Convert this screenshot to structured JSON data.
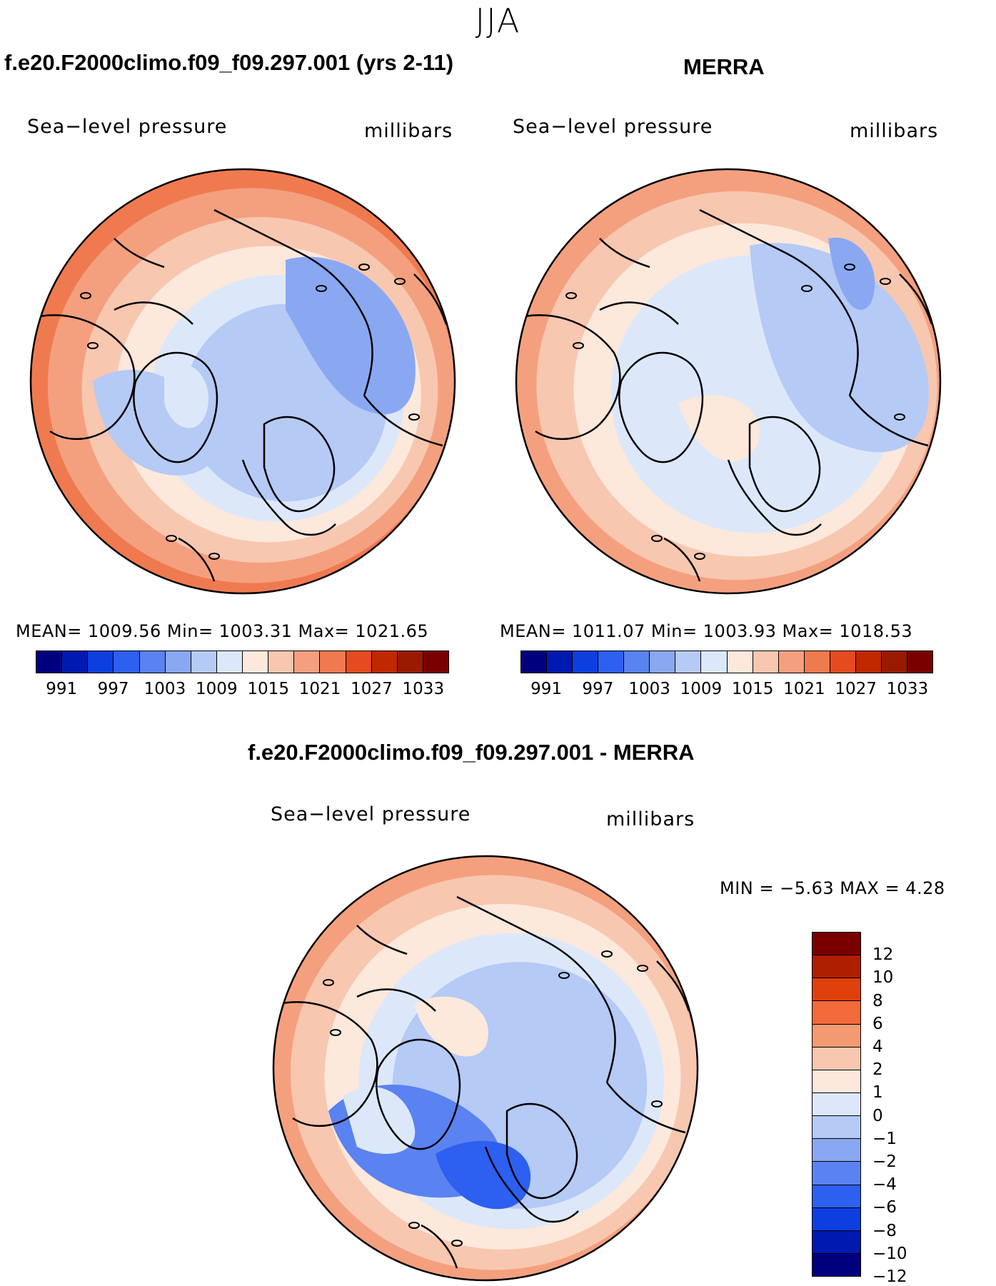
{
  "season": "JJA",
  "panels": {
    "model": {
      "header": "f.e20.F2000climo.f09_f09.297.001 (yrs 2-11)",
      "variable": "Sea−level pressure",
      "units": "millibars",
      "stats": "MEAN=  1009.56   Min=  1003.31   Max=  1021.65"
    },
    "obs": {
      "header": "MERRA",
      "variable": "Sea−level pressure",
      "units": "millibars",
      "stats": "MEAN=  1011.07   Min=  1003.93   Max=  1018.53"
    },
    "diff": {
      "header": "f.e20.F2000climo.f09_f09.297.001 - MERRA",
      "variable": "Sea−level pressure",
      "units": "millibars",
      "stats": "MIN =    −5.63  MAX =      4.28"
    }
  },
  "colorbar_abs": {
    "colors": [
      "#00007f",
      "#0019b0",
      "#0d3ee0",
      "#2d5ff0",
      "#5a82f0",
      "#8aa8f2",
      "#b5caf5",
      "#dce8fa",
      "#fde8dc",
      "#f8c7b0",
      "#f4a07f",
      "#f07a50",
      "#e54a20",
      "#c02800",
      "#991a00",
      "#7a0000"
    ],
    "ticks": [
      "991",
      "997",
      "1003",
      "1009",
      "1015",
      "1021",
      "1027",
      "1033"
    ]
  },
  "colorbar_diff": {
    "colors": [
      "#7a0000",
      "#b01e00",
      "#e0400c",
      "#f26a3a",
      "#f49a72",
      "#f8c7b0",
      "#fde8dc",
      "#dce8fa",
      "#b5caf5",
      "#8aa8f2",
      "#5a82f0",
      "#2d5ff0",
      "#0d3ee0",
      "#0019b0",
      "#00007f"
    ],
    "ticks": [
      "12",
      "10",
      "8",
      "6",
      "4",
      "2",
      "1",
      "0",
      "−1",
      "−2",
      "−4",
      "−6",
      "−8",
      "−10",
      "−12"
    ]
  },
  "map_fields": {
    "model": {
      "bands": [
        "#f07a50",
        "#f4a07f",
        "#f8c7b0",
        "#fde8dc",
        "#dce8fa",
        "#b5caf5"
      ],
      "blobs": [
        "#8aa8f2",
        "#b5caf5",
        "#dce8fa"
      ]
    },
    "obs": {
      "bands": [
        "#f4a07f",
        "#f8c7b0",
        "#fde8dc",
        "#dce8fa"
      ],
      "blobs": [
        "#b5caf5",
        "#8aa8f2",
        "#fde8dc"
      ]
    },
    "diff": {
      "bands": [
        "#f4a07f",
        "#f8c7b0",
        "#fde8dc",
        "#dce8fa",
        "#b5caf5"
      ],
      "blobs": [
        "#5a82f0",
        "#2d5ff0",
        "#fde8dc",
        "#dce8fa"
      ]
    }
  }
}
